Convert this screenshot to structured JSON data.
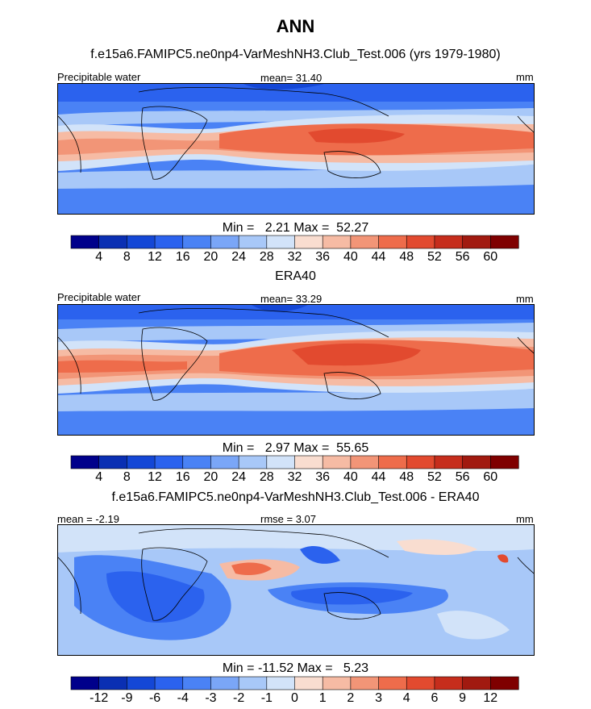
{
  "title": "ANN",
  "panels": [
    {
      "heading": "f.e15a6.FAMIPC5.ne0np4-VarMeshNH3.Club_Test.006 (yrs 1979-1980)",
      "left_label": "Precipitable water",
      "center_label": "mean=  31.40",
      "right_label": "mm",
      "minmax": "Min =   2.21 Max =  52.27"
    },
    {
      "heading": "ERA40",
      "left_label": "Precipitable water",
      "center_label": "mean=  33.29",
      "right_label": "mm",
      "minmax": "Min =   2.97 Max =  55.65"
    },
    {
      "heading": "f.e15a6.FAMIPC5.ne0np4-VarMeshNH3.Club_Test.006 - ERA40",
      "left_label": "mean =  -2.19",
      "center_label": "rmse =   3.07",
      "right_label": "mm",
      "minmax": "Min = -11.52 Max =   5.23"
    }
  ],
  "chart_data": [
    {
      "type": "heatmap",
      "title": "f.e15a6.FAMIPC5.ne0np4-VarMeshNH3.Club_Test.006 (yrs 1979-1980)",
      "variable": "Precipitable water",
      "units": "mm",
      "mean": 31.4,
      "min": 2.21,
      "max": 52.27,
      "colorbar_levels": [
        "4",
        "8",
        "12",
        "16",
        "20",
        "24",
        "28",
        "32",
        "36",
        "40",
        "44",
        "48",
        "52",
        "56",
        "60"
      ],
      "colorbar_colors": [
        "#00008b",
        "#0a2fb3",
        "#1447d6",
        "#2b62ee",
        "#4a82f5",
        "#7aa6f7",
        "#a8c8f8",
        "#d2e3f9",
        "#f9ddd0",
        "#f6bba4",
        "#f29577",
        "#ee6c4b",
        "#e24a2f",
        "#c62d1c",
        "#a11a10",
        "#7f0000"
      ]
    },
    {
      "type": "heatmap",
      "title": "ERA40",
      "variable": "Precipitable water",
      "units": "mm",
      "mean": 33.29,
      "min": 2.97,
      "max": 55.65,
      "colorbar_levels": [
        "4",
        "8",
        "12",
        "16",
        "20",
        "24",
        "28",
        "32",
        "36",
        "40",
        "44",
        "48",
        "52",
        "56",
        "60"
      ],
      "colorbar_colors": [
        "#00008b",
        "#0a2fb3",
        "#1447d6",
        "#2b62ee",
        "#4a82f5",
        "#7aa6f7",
        "#a8c8f8",
        "#d2e3f9",
        "#f9ddd0",
        "#f6bba4",
        "#f29577",
        "#ee6c4b",
        "#e24a2f",
        "#c62d1c",
        "#a11a10",
        "#7f0000"
      ]
    },
    {
      "type": "heatmap",
      "title": "f.e15a6.FAMIPC5.ne0np4-VarMeshNH3.Club_Test.006 - ERA40",
      "units": "mm",
      "mean": -2.19,
      "rmse": 3.07,
      "min": -11.52,
      "max": 5.23,
      "colorbar_levels": [
        "-12",
        "-9",
        "-6",
        "-4",
        "-3",
        "-2",
        "-1",
        "0",
        "1",
        "2",
        "3",
        "4",
        "6",
        "9",
        "12"
      ],
      "colorbar_colors": [
        "#00008b",
        "#0a2fb3",
        "#1447d6",
        "#2b62ee",
        "#4a82f5",
        "#7aa6f7",
        "#a8c8f8",
        "#d2e3f9",
        "#f9ddd0",
        "#f6bba4",
        "#f29577",
        "#ee6c4b",
        "#e24a2f",
        "#c62d1c",
        "#a11a10",
        "#7f0000"
      ]
    }
  ]
}
